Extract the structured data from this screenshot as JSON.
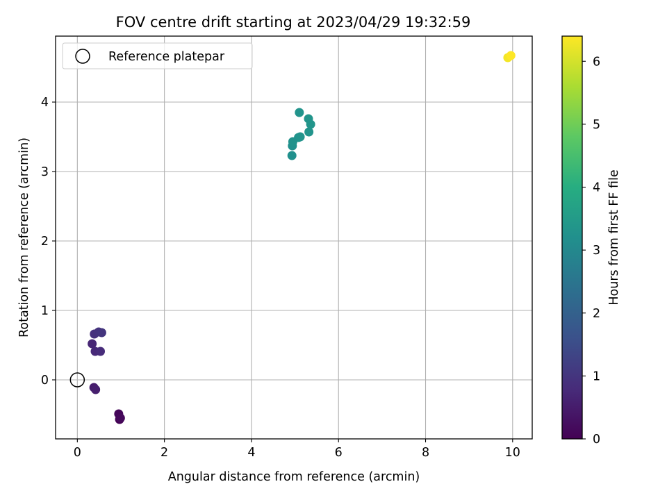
{
  "chart_data": {
    "type": "scatter",
    "title": "FOV centre drift starting at 2023/04/29 19:32:59",
    "xlabel": "Angular distance from reference (arcmin)",
    "ylabel": "Rotation from reference (arcmin)",
    "xlim": [
      -0.5,
      10.45
    ],
    "ylim": [
      -0.85,
      4.95
    ],
    "xticks": [
      0,
      2,
      4,
      6,
      8,
      10
    ],
    "yticks": [
      0,
      1,
      2,
      3,
      4
    ],
    "grid": true,
    "legend": {
      "placement": "top-left",
      "entries": [
        "Reference platepar"
      ]
    },
    "reference_point": {
      "x": 0,
      "y": 0
    },
    "colorbar": {
      "label": "Hours from first FF file",
      "colormap": "viridis",
      "range": [
        0,
        6.4
      ],
      "ticks": [
        0,
        1,
        2,
        3,
        4,
        5,
        6
      ]
    },
    "points": [
      {
        "x": 0.97,
        "y": -0.57,
        "hours": 0.0
      },
      {
        "x": 0.95,
        "y": -0.49,
        "hours": 0.1
      },
      {
        "x": 0.99,
        "y": -0.55,
        "hours": 0.15
      },
      {
        "x": 0.38,
        "y": -0.11,
        "hours": 0.5
      },
      {
        "x": 0.42,
        "y": -0.14,
        "hours": 0.55
      },
      {
        "x": 0.34,
        "y": 0.52,
        "hours": 0.7
      },
      {
        "x": 0.41,
        "y": 0.41,
        "hours": 0.75
      },
      {
        "x": 0.53,
        "y": 0.41,
        "hours": 0.8
      },
      {
        "x": 0.39,
        "y": 0.66,
        "hours": 0.9
      },
      {
        "x": 0.49,
        "y": 0.69,
        "hours": 0.95
      },
      {
        "x": 0.56,
        "y": 0.68,
        "hours": 1.0
      },
      {
        "x": 4.93,
        "y": 3.23,
        "hours": 3.2
      },
      {
        "x": 4.94,
        "y": 3.37,
        "hours": 3.2
      },
      {
        "x": 4.95,
        "y": 3.43,
        "hours": 3.25
      },
      {
        "x": 5.08,
        "y": 3.49,
        "hours": 3.25
      },
      {
        "x": 5.12,
        "y": 3.5,
        "hours": 3.3
      },
      {
        "x": 5.32,
        "y": 3.57,
        "hours": 3.3
      },
      {
        "x": 5.36,
        "y": 3.68,
        "hours": 3.35
      },
      {
        "x": 5.31,
        "y": 3.76,
        "hours": 3.35
      },
      {
        "x": 5.1,
        "y": 3.85,
        "hours": 3.3
      },
      {
        "x": 9.89,
        "y": 4.64,
        "hours": 6.3
      },
      {
        "x": 9.96,
        "y": 4.67,
        "hours": 6.4
      }
    ]
  }
}
